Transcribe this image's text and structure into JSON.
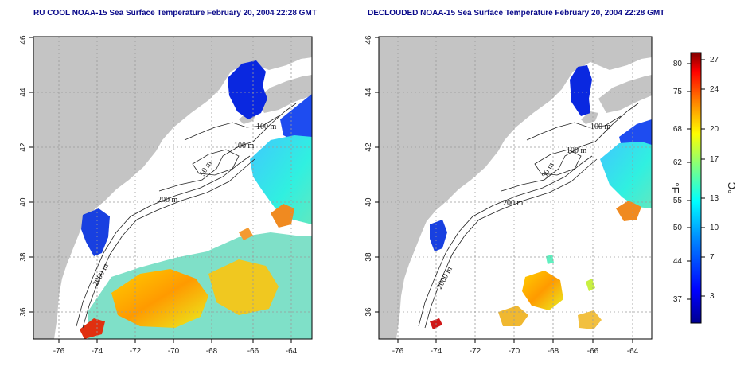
{
  "titles": {
    "left": "RU COOL NOAA-15 Sea Surface Temperature February 20, 2004 22:28 GMT",
    "right": "DECLOUDED NOAA-15 Sea Surface Temperature February 20, 2004 22:28 GMT"
  },
  "axes": {
    "x_ticks": [
      "-76",
      "-74",
      "-72",
      "-70",
      "-68",
      "-66",
      "-64"
    ],
    "y_ticks": [
      "36",
      "38",
      "40",
      "42",
      "44",
      "46"
    ]
  },
  "contour_labels": {
    "left": [
      "100 m",
      "100 m",
      "50 m",
      "200 m",
      "2000 m"
    ],
    "right": [
      "100 m",
      "100 m",
      "50 m",
      "200 m",
      "2000 m"
    ]
  },
  "colorbar": {
    "fahrenheit_unit": "°F",
    "celsius_unit": "°C",
    "fahrenheit_ticks": [
      "80",
      "75",
      "68",
      "62",
      "55",
      "50",
      "44",
      "37"
    ],
    "celsius_ticks": [
      "27",
      "24",
      "20",
      "17",
      "13",
      "10",
      "7",
      "3"
    ],
    "colors": [
      "#00008f",
      "#0000ff",
      "#0080ff",
      "#00ffff",
      "#80ff80",
      "#ffff00",
      "#ff8000",
      "#ff0000",
      "#800000"
    ]
  },
  "colors": {
    "land": "#c4c4c4",
    "ocean": "#ffffff",
    "grid": "#9a9a9a",
    "title": "#0a0a8a"
  }
}
